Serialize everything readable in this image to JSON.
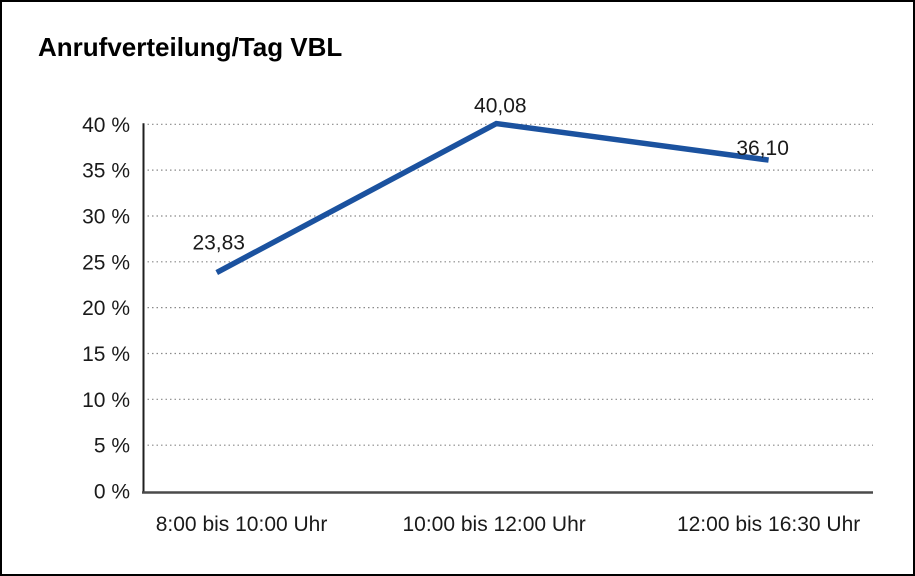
{
  "chart_data": {
    "type": "line",
    "title": "Anrufverteilung/Tag VBL",
    "categories": [
      "8:00 bis 10:00 Uhr",
      "10:00 bis 12:00 Uhr",
      "12:00 bis 16:30 Uhr"
    ],
    "values": [
      23.83,
      40.08,
      36.1
    ],
    "value_labels": [
      "23,83",
      "40,08",
      "36,10"
    ],
    "xlabel": "",
    "ylabel": "",
    "ylim": [
      0,
      40
    ],
    "ytick_step": 5,
    "yticks": [
      {
        "value": 0,
        "label": "0 %"
      },
      {
        "value": 5,
        "label": "5 %"
      },
      {
        "value": 10,
        "label": "10 %"
      },
      {
        "value": 15,
        "label": "15 %"
      },
      {
        "value": 20,
        "label": "20 %"
      },
      {
        "value": 25,
        "label": "25 %"
      },
      {
        "value": 30,
        "label": "30 %"
      },
      {
        "value": 35,
        "label": "35 %"
      },
      {
        "value": 40,
        "label": "40 %"
      }
    ],
    "grid": "horizontal-dotted",
    "legend": "none",
    "colors": {
      "line": "#1B529F",
      "grid": "#8A8A8A",
      "y_axis": "#1F1F1F",
      "x_axis": "#4A4A4A",
      "text": "#1A1A1A",
      "title": "#000000",
      "background": "#FFFFFF",
      "border": "#000000"
    }
  }
}
